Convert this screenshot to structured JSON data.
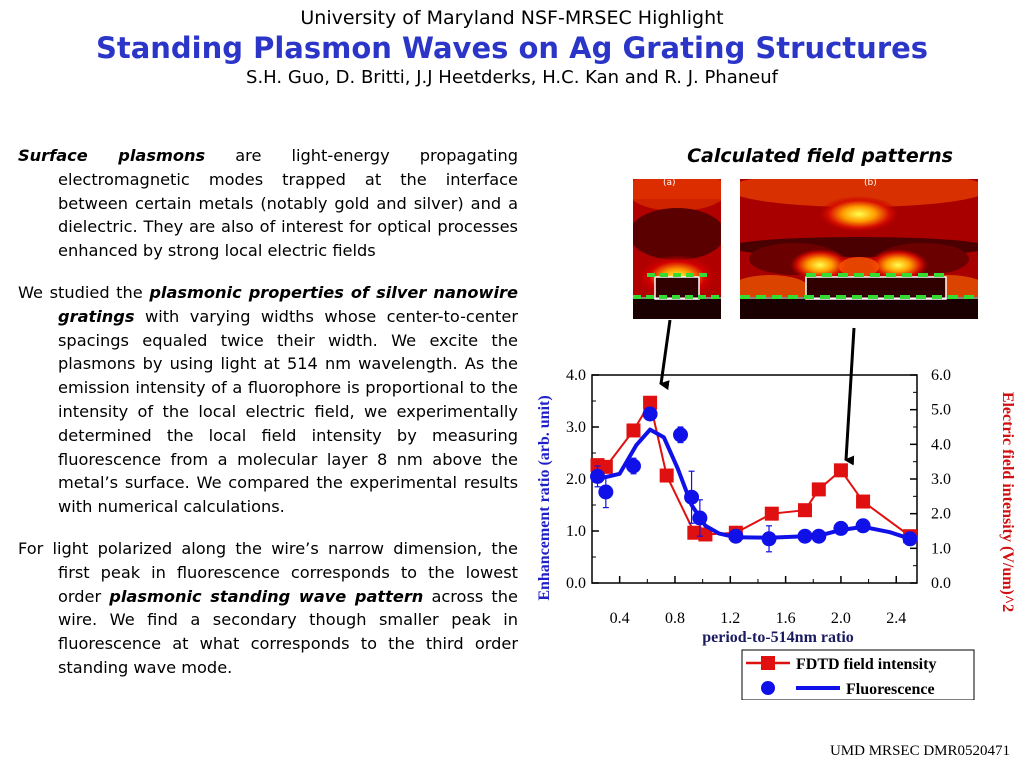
{
  "header": {
    "org": "University of Maryland NSF-MRSEC Highlight",
    "title": "Standing Plasmon Waves on Ag Grating Structures",
    "authors": "S.H. Guo, D. Britti, J.J Heetderks, H.C. Kan and R. J. Phaneuf"
  },
  "body": {
    "p1_bold": "Surface plasmons",
    "p1_rest": " are light-energy propagating electromagnetic modes trapped at the interface between certain metals (notably gold and silver) and a dielectric. They are also of interest for optical processes enhanced by strong local electric fields",
    "p2_a": "We studied the ",
    "p2_bold": "plasmonic properties of silver nanowire gratings",
    "p2_b": " with varying widths whose center-to-center spacings equaled twice their width. We excite the plasmons by using light at 514 nm wavelength. As the emission intensity of a fluorophore is proportional to the intensity of the local electric field, we experimentally determined the local field intensity by measuring fluorescence from a molecular layer 8 nm above the metal’s surface. We compared the experimental results with numerical calculations.",
    "p3_a": "For light polarized along the wire’s narrow dimension, the first peak in fluorescence corresponds to the lowest order ",
    "p3_bold": "plasmonic standing wave pattern",
    "p3_b": " across the wire. We find a secondary though smaller peak in fluorescence at what corresponds to the third order standing wave mode."
  },
  "figure": {
    "calc_title": "Calculated field patterns",
    "panel_labels": [
      "(a)",
      "(b)"
    ]
  },
  "chart_data": {
    "type": "line",
    "xlabel": "period-to-514nm ratio",
    "ylabel_left": "Enhancement ratio (arb. unit)",
    "ylabel_right": "Electric field intensity (V/um)^2",
    "xlim": [
      0.2,
      2.55
    ],
    "ylim_left": [
      0,
      4
    ],
    "ylim_right": [
      0,
      6
    ],
    "xticks": [
      "0.4",
      "0.8",
      "1.2",
      "1.6",
      "2.0",
      "2.4"
    ],
    "yticks_left": [
      "0.0",
      "1.0",
      "2.0",
      "3.0",
      "4.0"
    ],
    "yticks_right": [
      "0.0",
      "1.0",
      "2.0",
      "3.0",
      "4.0",
      "5.0",
      "6.0"
    ],
    "series": [
      {
        "name": "FDTD field intensity",
        "axis": "right",
        "color": "#e01010",
        "marker": "square",
        "x": [
          0.24,
          0.3,
          0.5,
          0.62,
          0.74,
          0.94,
          1.02,
          1.24,
          1.5,
          1.74,
          1.84,
          2.0,
          2.16,
          2.5
        ],
        "y": [
          3.4,
          3.35,
          4.4,
          5.2,
          3.1,
          1.45,
          1.4,
          1.45,
          2.0,
          2.1,
          2.7,
          3.25,
          2.35,
          1.35
        ]
      },
      {
        "name": "Fluorescence",
        "axis": "left",
        "color": "#1010e8",
        "marker": "circle",
        "x": [
          0.24,
          0.3,
          0.5,
          0.62,
          0.84,
          0.92,
          0.98,
          1.24,
          1.48,
          1.74,
          1.84,
          2.0,
          2.16,
          2.5
        ],
        "y": [
          2.05,
          1.75,
          2.25,
          3.25,
          2.85,
          1.65,
          1.25,
          0.9,
          0.85,
          0.9,
          0.9,
          1.05,
          1.1,
          0.85
        ],
        "err": [
          0.2,
          0.3,
          0.15,
          0.1,
          0.15,
          0.5,
          0.35,
          0.1,
          0.25,
          0.05,
          0.05,
          0.05,
          0.05,
          0.1
        ],
        "fit_x": [
          0.24,
          0.4,
          0.52,
          0.62,
          0.72,
          0.82,
          0.92,
          1.02,
          1.12,
          1.24,
          1.48,
          1.74,
          1.9,
          2.0,
          2.16,
          2.35,
          2.5
        ],
        "fit_y": [
          2.0,
          2.1,
          2.65,
          2.95,
          2.8,
          2.2,
          1.5,
          1.1,
          0.95,
          0.88,
          0.87,
          0.9,
          0.95,
          1.02,
          1.08,
          0.98,
          0.85
        ]
      }
    ],
    "legend_position": "bottom-right"
  },
  "footer": "UMD MRSEC DMR0520471"
}
